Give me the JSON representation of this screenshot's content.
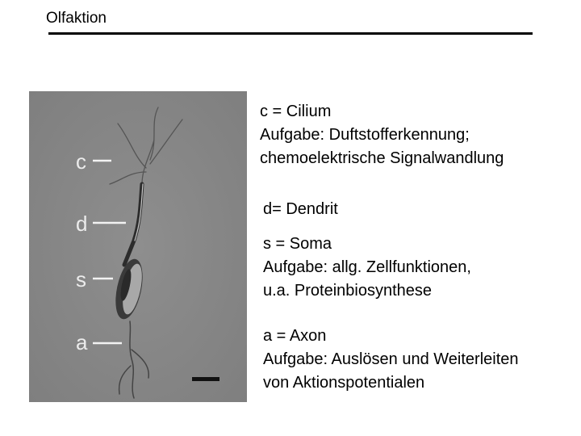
{
  "title": "Olfaktion",
  "micrograph": {
    "labels": [
      "c",
      "d",
      "s",
      "a"
    ]
  },
  "descriptions": [
    {
      "lines": [
        "c = Cilium",
        "Aufgabe: Duftstofferkennung;",
        "chemoelektrische Signalwandlung"
      ]
    },
    {
      "lines": [
        "d= Dendrit"
      ]
    },
    {
      "lines": [
        "s = Soma",
        "Aufgabe: allg. Zellfunktionen,",
        "u.a. Proteinbiosynthese"
      ]
    },
    {
      "lines": [
        "a = Axon",
        "Aufgabe: Auslösen und Weiterleiten",
        "von Aktionspotentialen"
      ]
    }
  ]
}
